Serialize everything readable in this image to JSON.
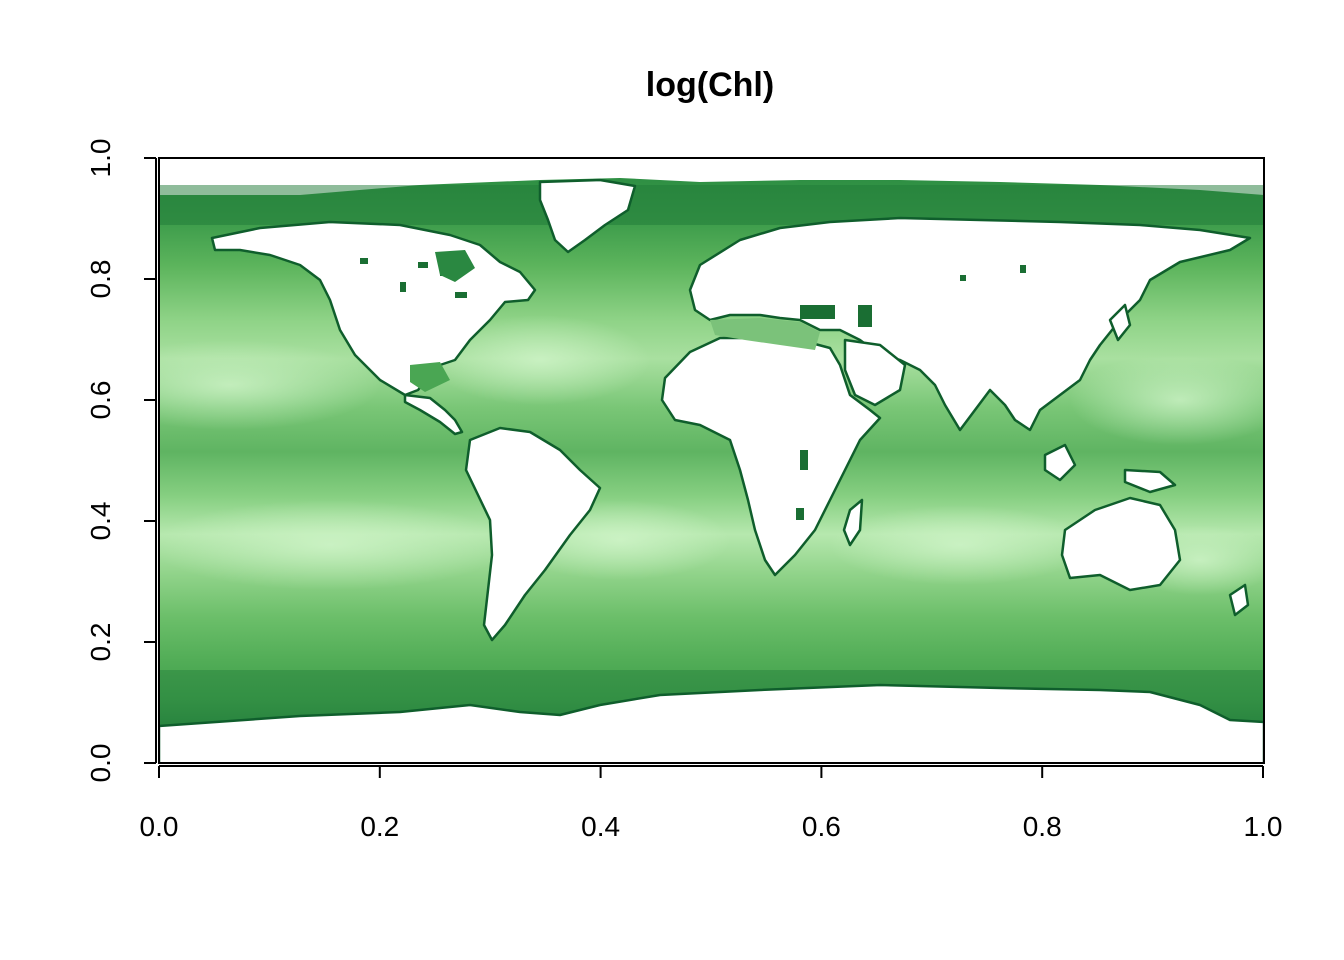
{
  "chart_data": {
    "type": "heatmap",
    "title": "log(Chl)",
    "xlabel": "",
    "ylabel": "",
    "xlim": [
      0.0,
      1.0
    ],
    "ylim": [
      0.0,
      1.0
    ],
    "x_ticks": [
      "0.0",
      "0.2",
      "0.4",
      "0.6",
      "0.8",
      "1.0"
    ],
    "y_ticks": [
      "0.0",
      "0.2",
      "0.4",
      "0.6",
      "0.8",
      "1.0"
    ],
    "x_tick_values": [
      0.0,
      0.2,
      0.4,
      0.6,
      0.8,
      1.0
    ],
    "y_tick_values": [
      0.0,
      0.2,
      0.4,
      0.6,
      0.8,
      1.0
    ],
    "grid": false,
    "legend": "none",
    "colors": {
      "low": "#c8f0c0",
      "mid": "#6cbf6a",
      "high": "#0e5a2a",
      "land": "#ffffff",
      "axis": "#000000"
    },
    "data_extent": {
      "y_bottom": 0.06,
      "y_top": 0.965
    }
  }
}
